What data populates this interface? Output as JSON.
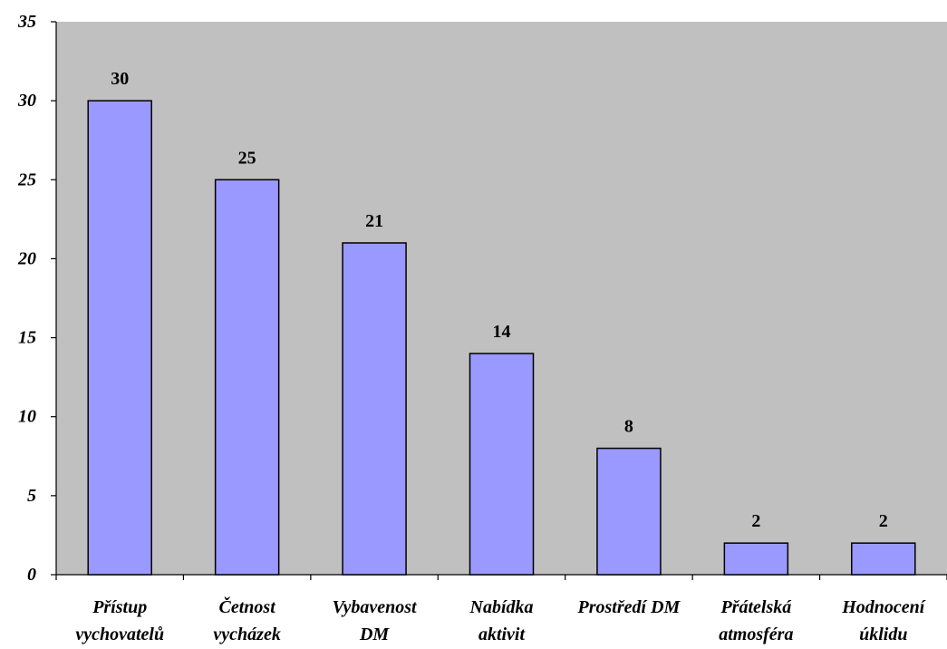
{
  "colors": {
    "plot_bg": "#c0c0c0",
    "bar_fill": "#9999ff",
    "bar_stroke": "#000000"
  },
  "chart_data": {
    "type": "bar",
    "categories": [
      [
        "Přístup",
        "vychovatelů"
      ],
      [
        "Četnost",
        "vycházek"
      ],
      [
        "Vybavenost",
        "DM"
      ],
      [
        "Nabídka",
        "aktivit"
      ],
      [
        "Prostředí DM"
      ],
      [
        "Přátelská",
        "atmosféra"
      ],
      [
        "Hodnocení",
        "úklidu"
      ]
    ],
    "values": [
      30,
      25,
      21,
      14,
      8,
      2,
      2
    ],
    "ylim": [
      0,
      35
    ],
    "yticks": [
      0,
      5,
      10,
      15,
      20,
      25,
      30,
      35
    ],
    "grid": false,
    "data_labels": true
  }
}
